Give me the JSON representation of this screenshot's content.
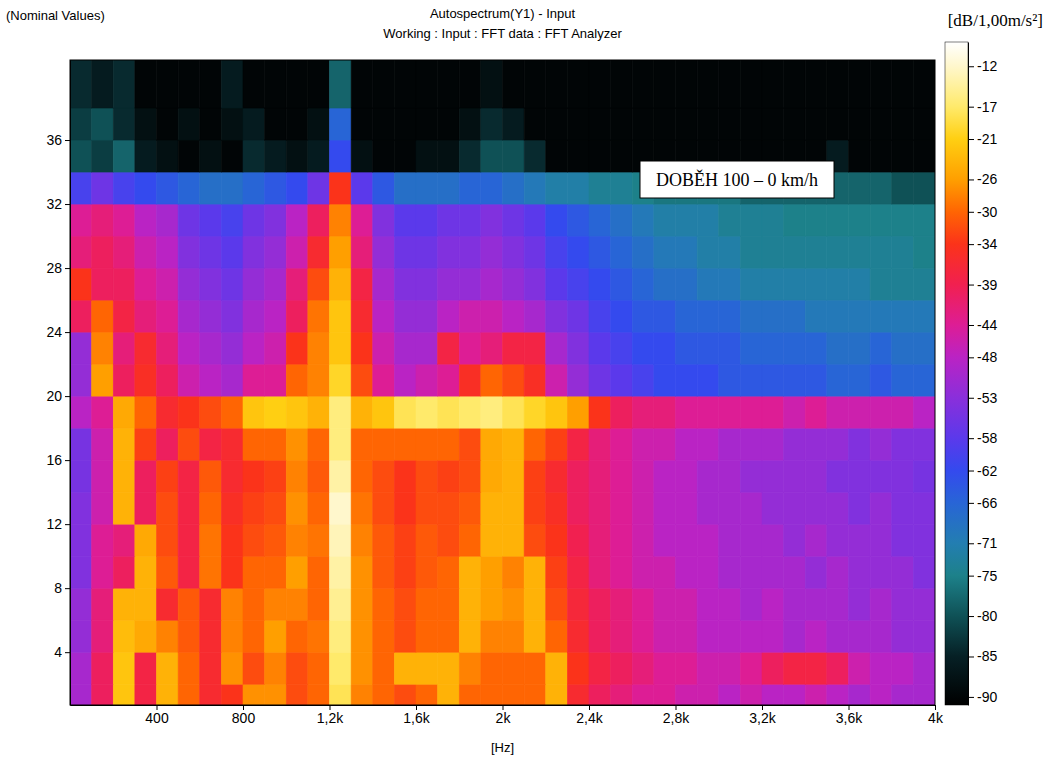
{
  "chart_data": {
    "type": "heatmap",
    "title": "Autospectrum(Y1) - Input",
    "subtitle": "Working : Input : FFT data : FFT Analyzer",
    "note": "(Nominal Values)",
    "annotation": "DOBĚH 100 – 0 km/h",
    "x_label": "[Hz]",
    "colorbar_label": "[dB/1,00m/s²]",
    "xlim": [
      0,
      4000
    ],
    "xticks": [
      400,
      800,
      {
        "value": 1200,
        "label": "1,2k"
      },
      {
        "value": 1600,
        "label": "1,6k"
      },
      {
        "value": 2000,
        "label": "2k"
      },
      {
        "value": 2400,
        "label": "2,4k"
      },
      {
        "value": 2800,
        "label": "2,8k"
      },
      {
        "value": 3200,
        "label": "3,2k"
      },
      {
        "value": 3600,
        "label": "3,6k"
      },
      {
        "value": 4000,
        "label": "4k"
      }
    ],
    "ylim": [
      0.7,
      41
    ],
    "yticks": [
      4,
      8,
      12,
      16,
      20,
      24,
      28,
      32,
      36
    ],
    "clim": [
      -91,
      -9
    ],
    "cticks": [
      -90,
      -85,
      -80,
      -75,
      -71,
      -66,
      -62,
      -58,
      -53,
      -48,
      -44,
      -39,
      -34,
      -30,
      -26,
      -21,
      -17,
      -12
    ],
    "x_edges": [
      0,
      100,
      200,
      300,
      400,
      500,
      600,
      700,
      800,
      900,
      1000,
      1100,
      1200,
      1300,
      1400,
      1500,
      1600,
      1700,
      1800,
      1900,
      2000,
      2100,
      2200,
      2300,
      2400,
      2500,
      2600,
      2700,
      2800,
      2900,
      3000,
      3100,
      3200,
      3300,
      3400,
      3500,
      3600,
      3700,
      3800,
      3900,
      4000
    ],
    "y_edges": [
      0,
      2,
      4,
      6,
      8,
      10,
      12,
      14,
      16,
      18,
      20,
      22,
      24,
      26,
      28,
      30,
      32,
      34,
      36,
      38,
      42
    ],
    "values": [
      [
        -50,
        -40,
        -22,
        -38,
        -24,
        -30,
        -36,
        -34,
        -27,
        -27,
        -32,
        -30,
        -18,
        -28,
        -30,
        -32,
        -30,
        -24,
        -30,
        -30,
        -30,
        -30,
        -24,
        -36,
        -40,
        -42,
        -44,
        -44,
        -46,
        -46,
        -48,
        -46,
        -48,
        -48,
        -46,
        -48,
        -50,
        -48,
        -50,
        -50
      ],
      [
        -50,
        -40,
        -22,
        -38,
        -24,
        -30,
        -36,
        -27,
        -32,
        -28,
        -32,
        -30,
        -17,
        -27,
        -30,
        -24,
        -24,
        -24,
        -28,
        -30,
        -30,
        -30,
        -24,
        -34,
        -38,
        -40,
        -42,
        -44,
        -44,
        -46,
        -46,
        -44,
        -40,
        -38,
        -38,
        -40,
        -46,
        -48,
        -48,
        -50
      ],
      [
        -52,
        -42,
        -23,
        -25,
        -28,
        -31,
        -36,
        -28,
        -30,
        -26,
        -30,
        -29,
        -16,
        -27,
        -30,
        -32,
        -30,
        -30,
        -24,
        -28,
        -28,
        -24,
        -30,
        -36,
        -40,
        -42,
        -44,
        -46,
        -46,
        -48,
        -48,
        -48,
        -48,
        -50,
        -48,
        -50,
        -50,
        -50,
        -52,
        -52
      ],
      [
        -52,
        -42,
        -24,
        -24,
        -36,
        -31,
        -36,
        -28,
        -30,
        -28,
        -28,
        -30,
        -15,
        -27,
        -30,
        -32,
        -30,
        -30,
        -24,
        -26,
        -27,
        -24,
        -32,
        -37,
        -40,
        -42,
        -44,
        -46,
        -46,
        -48,
        -48,
        -50,
        -48,
        -50,
        -50,
        -50,
        -52,
        -50,
        -52,
        -52
      ],
      [
        -54,
        -44,
        -40,
        -24,
        -31,
        -38,
        -29,
        -34,
        -30,
        -30,
        -26,
        -30,
        -14,
        -27,
        -31,
        -33,
        -31,
        -30,
        -24,
        -26,
        -28,
        -24,
        -33,
        -38,
        -42,
        -44,
        -46,
        -46,
        -48,
        -48,
        -50,
        -50,
        -50,
        -50,
        -52,
        -50,
        -52,
        -52,
        -52,
        -54
      ],
      [
        -54,
        -44,
        -42,
        -25,
        -32,
        -38,
        -29,
        -34,
        -32,
        -31,
        -28,
        -29,
        -13,
        -28,
        -31,
        -33,
        -31,
        -32,
        -30,
        -24,
        -24,
        -32,
        -34,
        -39,
        -42,
        -44,
        -46,
        -48,
        -48,
        -48,
        -50,
        -50,
        -50,
        -52,
        -50,
        -52,
        -52,
        -52,
        -54,
        -54
      ],
      [
        -54,
        -46,
        -24,
        -40,
        -32,
        -38,
        -30,
        -35,
        -33,
        -32,
        -27,
        -30,
        -12,
        -29,
        -32,
        -34,
        -32,
        -32,
        -31,
        -24,
        -24,
        -33,
        -35,
        -40,
        -42,
        -44,
        -46,
        -48,
        -48,
        -50,
        -50,
        -50,
        -52,
        -52,
        -52,
        -52,
        -54,
        -52,
        -54,
        -54
      ],
      [
        -55,
        -46,
        -24,
        -40,
        -33,
        -38,
        -31,
        -36,
        -34,
        -33,
        -28,
        -31,
        -14,
        -30,
        -32,
        -34,
        -32,
        -33,
        -32,
        -25,
        -24,
        -33,
        -36,
        -40,
        -42,
        -44,
        -46,
        -48,
        -48,
        -50,
        -50,
        -52,
        -52,
        -52,
        -52,
        -54,
        -54,
        -54,
        -54,
        -55
      ],
      [
        -55,
        -46,
        -24,
        -33,
        -40,
        -32,
        -38,
        -36,
        -30,
        -30,
        -27,
        -30,
        -16,
        -30,
        -30,
        -30,
        -30,
        -30,
        -32,
        -25,
        -24,
        -30,
        -33,
        -38,
        -42,
        -44,
        -46,
        -46,
        -48,
        -48,
        -50,
        -50,
        -50,
        -52,
        -52,
        -52,
        -54,
        -52,
        -54,
        -54
      ],
      [
        -48,
        -44,
        -25,
        -30,
        -36,
        -34,
        -32,
        -30,
        -22,
        -21,
        -22,
        -24,
        -16,
        -24,
        -22,
        -18,
        -17,
        -18,
        -17,
        -16,
        -18,
        -20,
        -22,
        -26,
        -34,
        -40,
        -42,
        -42,
        -44,
        -44,
        -44,
        -44,
        -44,
        -46,
        -44,
        -46,
        -46,
        -46,
        -46,
        -48
      ],
      [
        -52,
        -26,
        -40,
        -35,
        -40,
        -46,
        -48,
        -50,
        -44,
        -44,
        -30,
        -28,
        -20,
        -32,
        -44,
        -48,
        -46,
        -44,
        -35,
        -30,
        -32,
        -35,
        -46,
        -52,
        -56,
        -58,
        -60,
        -62,
        -62,
        -62,
        -64,
        -64,
        -64,
        -64,
        -64,
        -66,
        -66,
        -64,
        -66,
        -66
      ],
      [
        -52,
        -28,
        -42,
        -36,
        -42,
        -48,
        -50,
        -52,
        -48,
        -46,
        -34,
        -28,
        -22,
        -34,
        -46,
        -50,
        -50,
        -38,
        -44,
        -42,
        -38,
        -38,
        -50,
        -54,
        -58,
        -60,
        -62,
        -62,
        -64,
        -64,
        -64,
        -66,
        -66,
        -66,
        -66,
        -68,
        -68,
        -66,
        -68,
        -68
      ],
      [
        -40,
        -30,
        -38,
        -42,
        -44,
        -50,
        -52,
        -54,
        -50,
        -48,
        -40,
        -29,
        -22,
        -36,
        -48,
        -52,
        -52,
        -48,
        -46,
        -46,
        -48,
        -50,
        -54,
        -56,
        -60,
        -62,
        -64,
        -64,
        -66,
        -66,
        -66,
        -68,
        -68,
        -68,
        -70,
        -70,
        -70,
        -70,
        -70,
        -70
      ],
      [
        -34,
        -40,
        -40,
        -44,
        -46,
        -52,
        -54,
        -56,
        -52,
        -50,
        -42,
        -32,
        -24,
        -38,
        -50,
        -54,
        -54,
        -52,
        -52,
        -50,
        -52,
        -54,
        -58,
        -60,
        -62,
        -64,
        -66,
        -68,
        -68,
        -70,
        -70,
        -72,
        -72,
        -72,
        -72,
        -72,
        -72,
        -74,
        -74,
        -74
      ],
      [
        -42,
        -40,
        -42,
        -46,
        -48,
        -54,
        -56,
        -58,
        -54,
        -52,
        -46,
        -36,
        -26,
        -42,
        -52,
        -56,
        -56,
        -54,
        -54,
        -52,
        -54,
        -56,
        -60,
        -62,
        -64,
        -66,
        -68,
        -70,
        -70,
        -72,
        -72,
        -74,
        -74,
        -74,
        -74,
        -74,
        -74,
        -74,
        -74,
        -75
      ],
      [
        -44,
        -42,
        -44,
        -48,
        -50,
        -56,
        -58,
        -60,
        -56,
        -54,
        -48,
        -40,
        -28,
        -44,
        -54,
        -58,
        -58,
        -56,
        -56,
        -54,
        -56,
        -58,
        -62,
        -64,
        -66,
        -68,
        -70,
        -72,
        -72,
        -72,
        -74,
        -74,
        -74,
        -75,
        -75,
        -75,
        -75,
        -75,
        -75,
        -75
      ],
      [
        -60,
        -56,
        -60,
        -62,
        -64,
        -66,
        -68,
        -68,
        -66,
        -64,
        -62,
        -56,
        -34,
        -58,
        -64,
        -68,
        -68,
        -68,
        -66,
        -66,
        -68,
        -70,
        -72,
        -72,
        -74,
        -74,
        -75,
        -76,
        -76,
        -76,
        -76,
        -78,
        -78,
        -78,
        -78,
        -78,
        -78,
        -78,
        -80,
        -80
      ],
      [
        -80,
        -82,
        -78,
        -86,
        -88,
        -90,
        -88,
        -90,
        -84,
        -86,
        -88,
        -86,
        -62,
        -88,
        -90,
        -90,
        -88,
        -88,
        -84,
        -80,
        -80,
        -84,
        -90,
        -90,
        -90,
        -90,
        -90,
        -90,
        -90,
        -90,
        -90,
        -90,
        -90,
        -90,
        -90,
        -86,
        -90,
        -90,
        -90,
        -90
      ],
      [
        -82,
        -80,
        -84,
        -88,
        -90,
        -88,
        -90,
        -88,
        -86,
        -90,
        -90,
        -88,
        -66,
        -90,
        -90,
        -90,
        -90,
        -90,
        -88,
        -84,
        -86,
        -90,
        -90,
        -90,
        -90,
        -90,
        -90,
        -90,
        -90,
        -90,
        -90,
        -90,
        -90,
        -90,
        -90,
        -90,
        -90,
        -90,
        -90,
        -90
      ],
      [
        -84,
        -86,
        -84,
        -90,
        -90,
        -90,
        -90,
        -86,
        -90,
        -90,
        -90,
        -90,
        -78,
        -90,
        -90,
        -90,
        -90,
        -90,
        -90,
        -88,
        -90,
        -90,
        -90,
        -90,
        -90,
        -90,
        -90,
        -90,
        -90,
        -90,
        -90,
        -90,
        -90,
        -90,
        -90,
        -90,
        -90,
        -90,
        -90,
        -90
      ]
    ]
  }
}
